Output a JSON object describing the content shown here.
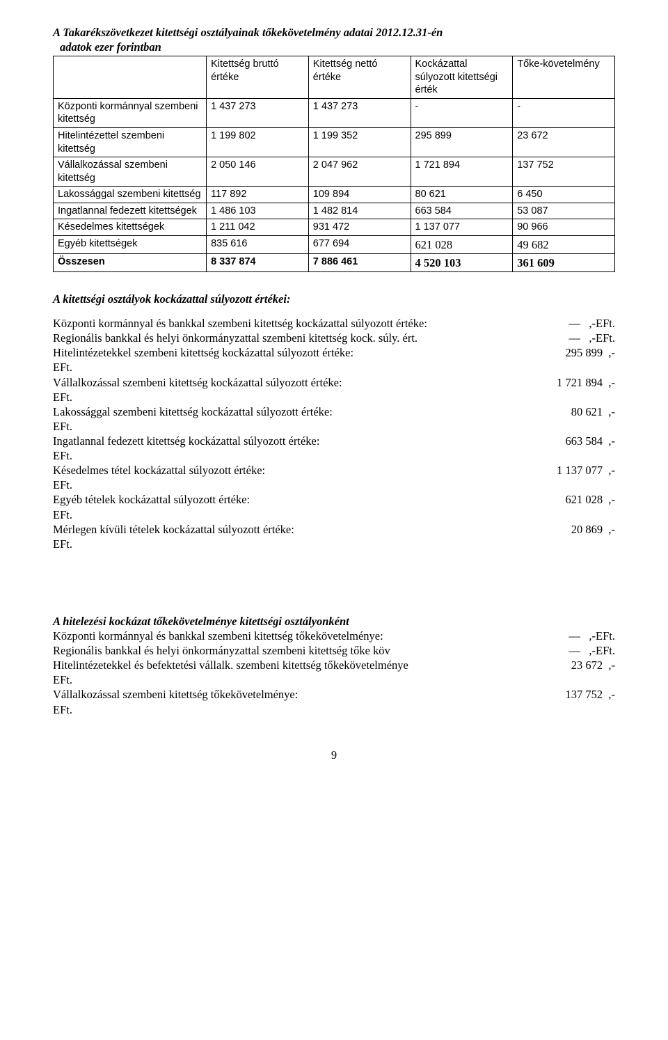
{
  "heading": {
    "title": "A Takarékszövetkezet kitettségi osztályainak tőkekövetelmény adatai 2012.12.31-én",
    "subtitle": "adatok ezer forintban"
  },
  "table": {
    "columns": [
      "",
      "Kitettség bruttó értéke",
      "Kitettség nettó értéke",
      "Kockázattal súlyozott kitettségi érték",
      "Tőke-követelmény"
    ],
    "rows": [
      {
        "label": "Központi kormánnyal szembeni kitettség",
        "c1": "1 437 273",
        "c2": "1 437 273",
        "c3": "-",
        "c4": "-"
      },
      {
        "label": "Hitelintézettel szembeni kitettség",
        "c1": "1 199 802",
        "c2": "1 199 352",
        "c3": "295 899",
        "c4": "23 672"
      },
      {
        "label": "Vállalkozással szembeni kitettség",
        "c1": "2 050 146",
        "c2": "2 047 962",
        "c3": "1 721 894",
        "c4": "137 752"
      },
      {
        "label": "Lakossággal szembeni kitettség",
        "c1": "117 892",
        "c2": "109 894",
        "c3": "80 621",
        "c4": "6 450"
      },
      {
        "label": "Ingatlannal fedezett kitettségek",
        "c1": "1 486 103",
        "c2": "1 482 814",
        "c3": "663 584",
        "c4": "53 087"
      },
      {
        "label": "Késedelmes kitettségek",
        "c1": "1 211 042",
        "c2": "931 472",
        "c3": "1 137 077",
        "c4": "90 966"
      },
      {
        "label": "Egyéb kitettségek",
        "c1": "835 616",
        "c2": "677 694",
        "c3": "621 028",
        "c4": "49 682",
        "serif_c3c4": true
      },
      {
        "label": "Összesen",
        "c1": "8 337 874",
        "c2": "7 886 461",
        "c3": "4 520 103",
        "c4": "361 609",
        "bold": true,
        "serif_c3c4": true
      }
    ]
  },
  "section_risk": {
    "heading": "A kitettségi osztályok kockázattal súlyozott értékei:",
    "lines": [
      {
        "label": "Központi kormánnyal és bankkal szembeni kitettség kockázattal súlyozott értéke:",
        "value": "―   ,-EFt."
      },
      {
        "label": "Regionális bankkal és helyi önkormányzattal szembeni kitettség kock. súly. ért.",
        "value": "―   ,-EFt."
      },
      {
        "label": "Hitelintézetekkel szembeni kitettség kockázattal súlyozott értéke:",
        "value": "295 899  ,-",
        "eft": true
      },
      {
        "label": "Vállalkozással szembeni kitettség kockázattal súlyozott értéke:",
        "value": "1 721 894  ,-",
        "eft": true
      },
      {
        "label": "Lakossággal szembeni kitettség kockázattal súlyozott értéke:",
        "value": "80 621  ,-",
        "eft": true
      },
      {
        "label": "Ingatlannal fedezett kitettség kockázattal súlyozott értéke:",
        "value": "663 584  ,-",
        "eft": true
      },
      {
        "label": "Késedelmes tétel kockázattal súlyozott értéke:",
        "value": "1 137 077  ,-",
        "eft": true
      },
      {
        "label": "Egyéb tételek kockázattal súlyozott értéke:",
        "value": "621 028  ,-",
        "eft": true
      },
      {
        "label": "Mérlegen kívüli tételek kockázattal súlyozott értéke:",
        "value": "20 869  ,-",
        "eft": true
      }
    ]
  },
  "section_capreq": {
    "heading": "A hitelezési kockázat tőkekövetelménye kitettségi osztályonként",
    "lines": [
      {
        "label": "Központi kormánnyal és bankkal szembeni kitettség tőkekövetelménye:",
        "value": "―   ,-EFt."
      },
      {
        "label": "Regionális bankkal és helyi önkormányzattal szembeni kitettség  tőke köv",
        "value": "―   ,-EFt."
      },
      {
        "label": "Hitelintézetekkel és befektetési vállalk. szembeni kitettség tőkekövetelménye",
        "value": "23 672  ,-",
        "eft": true
      },
      {
        "label": "Vállalkozással szembeni kitettség tőkekövetelménye:",
        "value": "137 752  ,-",
        "eft": true
      }
    ]
  },
  "eft_label": "EFt.",
  "page_number": "9"
}
